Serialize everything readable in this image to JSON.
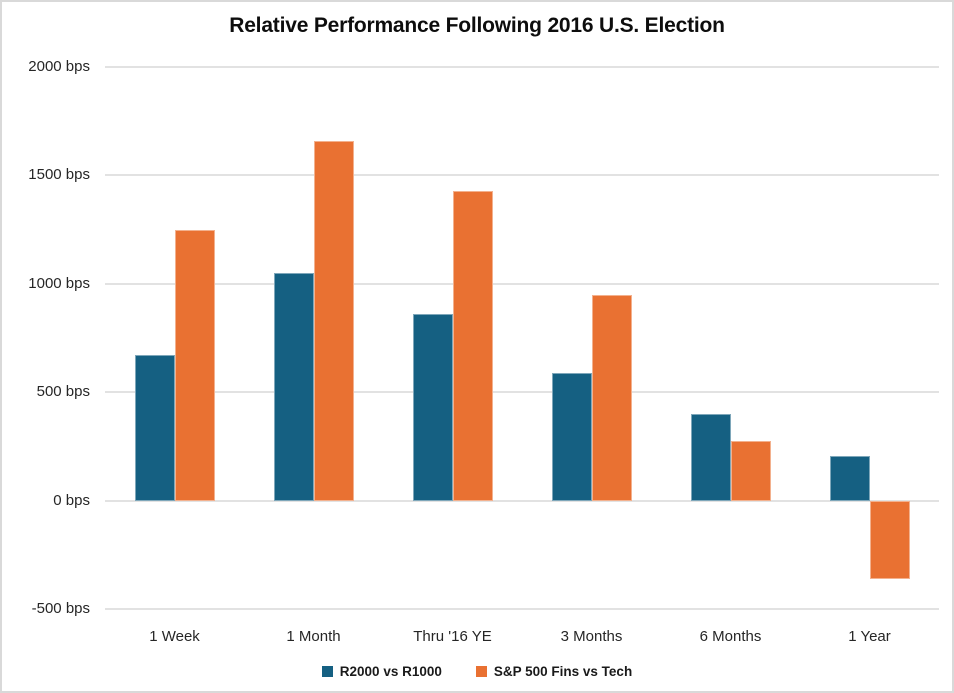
{
  "chart_data": {
    "type": "bar",
    "title": "Relative Performance Following 2016 U.S. Election",
    "categories": [
      "1 Week",
      "1 Month",
      "Thru '16 YE",
      "3 Months",
      "6 Months",
      "1 Year"
    ],
    "series": [
      {
        "name": "R2000 vs R1000",
        "color": "#156082",
        "values": [
          670,
          1050,
          860,
          590,
          400,
          205
        ]
      },
      {
        "name": "S&P 500 Fins vs Tech",
        "color": "#E97132",
        "values": [
          1250,
          1660,
          1430,
          950,
          275,
          -360
        ]
      }
    ],
    "unit": "bps",
    "ylim": [
      -500,
      2000
    ],
    "y_ticks": [
      2000,
      1500,
      1000,
      500,
      0,
      -500
    ],
    "y_tick_labels": [
      "2000 bps",
      "1500 bps",
      "1000 bps",
      "500 bps",
      "0 bps",
      "-500 bps"
    ],
    "grid": true,
    "legend_position": "bottom",
    "colors": {
      "gridline": "#e2e2e2",
      "text": "#262626",
      "title_text": "#0d0d0d",
      "background": "#ffffff",
      "frame_border": "#d9d9d9"
    }
  }
}
